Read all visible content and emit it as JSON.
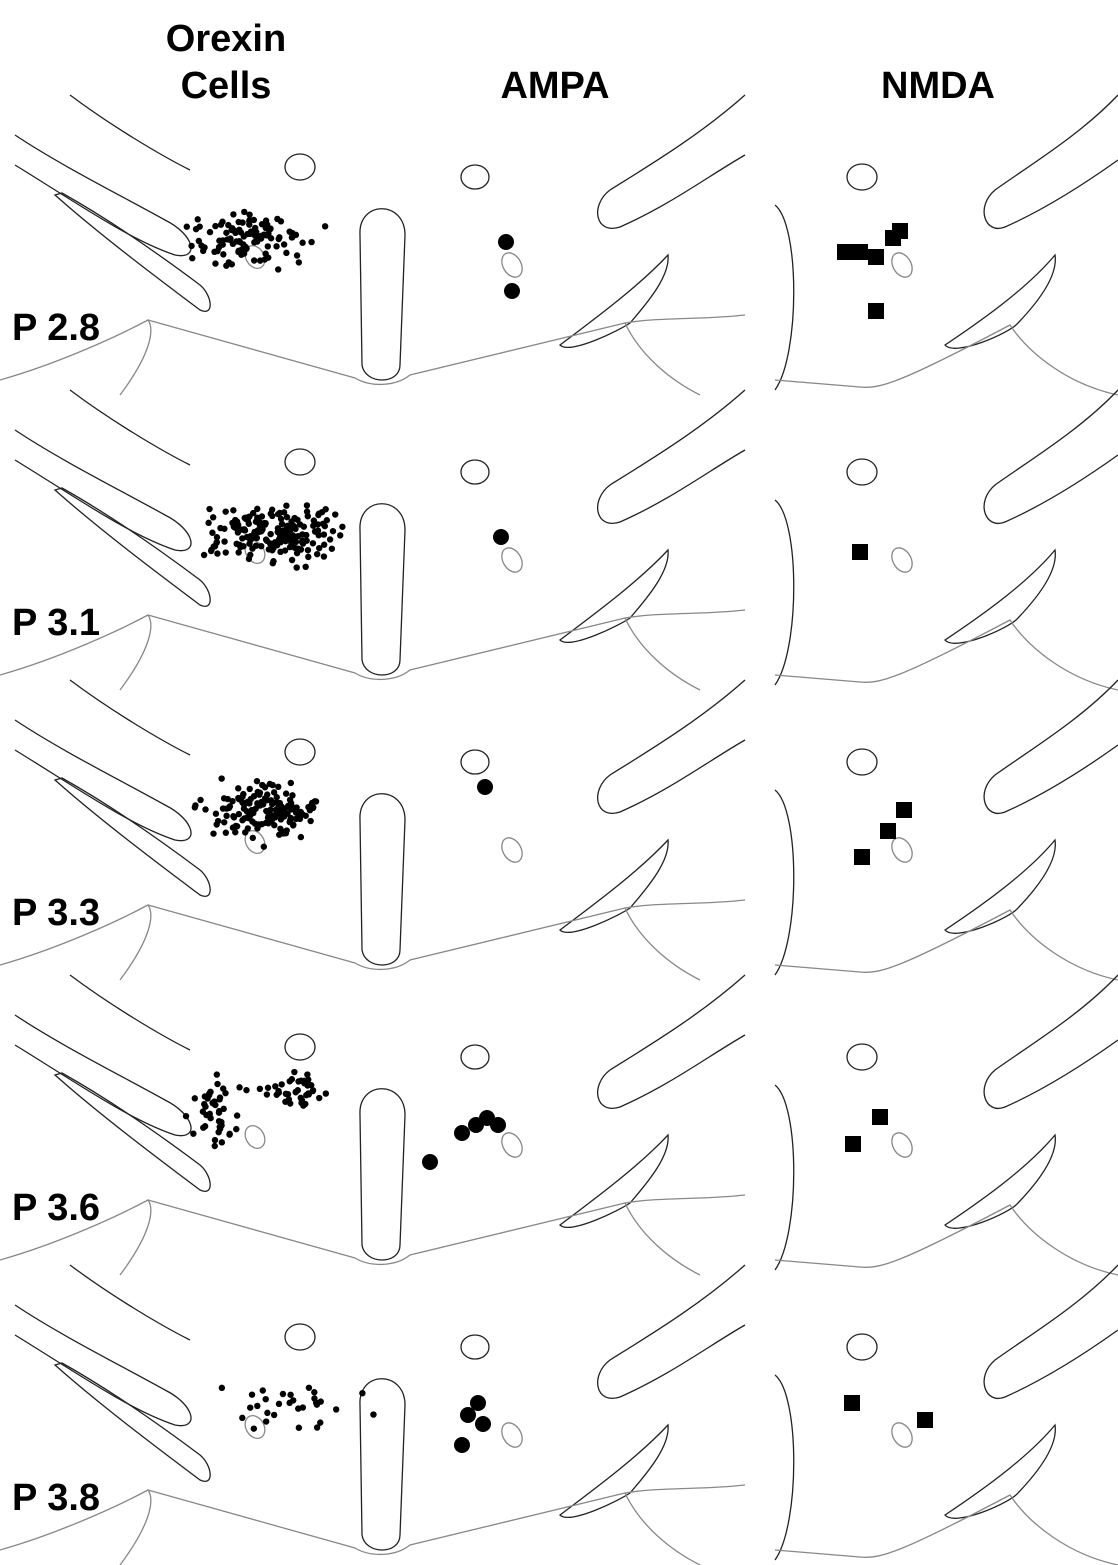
{
  "header": {
    "columns": [
      {
        "lines": [
          "Orexin",
          "Cells"
        ]
      },
      {
        "lines": [
          "AMPA"
        ]
      },
      {
        "lines": [
          "NMDA"
        ]
      }
    ]
  },
  "sections": [
    {
      "label": "P 2.8"
    },
    {
      "label": "P 3.1"
    },
    {
      "label": "P 3.3"
    },
    {
      "label": "P 3.6"
    },
    {
      "label": "P 3.8"
    }
  ]
}
